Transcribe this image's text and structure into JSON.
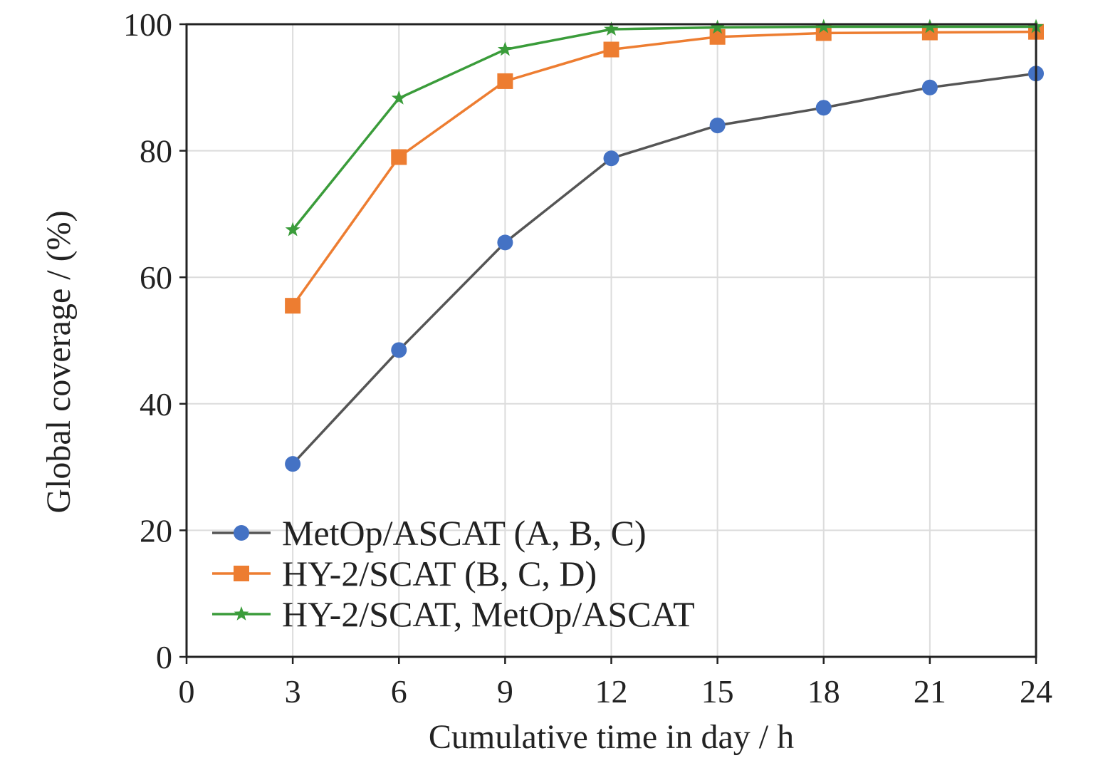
{
  "chart_data": {
    "type": "line",
    "title": "",
    "xlabel": "Cumulative time in day / h",
    "ylabel": "Global coverage / (%)",
    "xlim": [
      0,
      24
    ],
    "ylim": [
      0,
      100
    ],
    "xticks": [
      0,
      3,
      6,
      9,
      12,
      15,
      18,
      21,
      24
    ],
    "yticks": [
      0,
      20,
      40,
      60,
      80,
      100
    ],
    "grid": true,
    "legend_position": "bottom-left",
    "x": [
      3,
      6,
      9,
      12,
      15,
      18,
      21,
      24
    ],
    "series": [
      {
        "name": "MetOp/ASCAT (A, B, C)",
        "marker": "circle",
        "color": "#4472c4",
        "line_color": "#555555",
        "values": [
          30.5,
          48.5,
          65.5,
          78.8,
          84.0,
          86.8,
          90.0,
          92.2
        ]
      },
      {
        "name": "HY-2/SCAT (B, C, D)",
        "marker": "square",
        "color": "#ed7d31",
        "line_color": "#ed7d31",
        "values": [
          55.5,
          79.0,
          91.0,
          96.0,
          98.0,
          98.6,
          98.7,
          98.8
        ]
      },
      {
        "name": "HY-2/SCAT, MetOp/ASCAT",
        "marker": "star",
        "color": "#3a9c3a",
        "line_color": "#3a9c3a",
        "values": [
          67.5,
          88.3,
          96.0,
          99.2,
          99.5,
          99.6,
          99.6,
          99.6
        ]
      }
    ]
  }
}
